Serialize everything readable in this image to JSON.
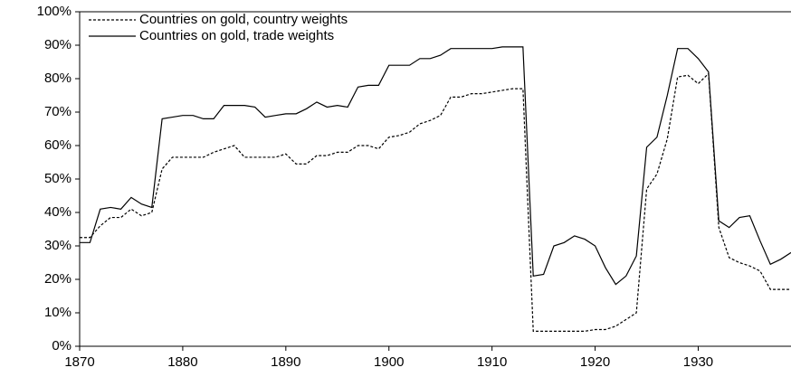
{
  "chart_data": {
    "type": "line",
    "x": [
      1870,
      1871,
      1872,
      1873,
      1874,
      1875,
      1876,
      1877,
      1878,
      1879,
      1880,
      1881,
      1882,
      1883,
      1884,
      1885,
      1886,
      1887,
      1888,
      1889,
      1890,
      1891,
      1892,
      1893,
      1894,
      1895,
      1896,
      1897,
      1898,
      1899,
      1900,
      1901,
      1902,
      1903,
      1904,
      1905,
      1906,
      1907,
      1908,
      1909,
      1910,
      1911,
      1912,
      1913,
      1914,
      1915,
      1916,
      1917,
      1918,
      1919,
      1920,
      1921,
      1922,
      1923,
      1924,
      1925,
      1926,
      1927,
      1928,
      1929,
      1930,
      1931,
      1932,
      1933,
      1934,
      1935,
      1936,
      1937,
      1938,
      1939
    ],
    "series": [
      {
        "name": "Countries on gold, country weights",
        "color": "#000000",
        "dashed": true,
        "values": [
          32.5,
          32.5,
          36,
          38.5,
          38.5,
          41,
          39,
          40,
          53,
          56.5,
          56.5,
          56.5,
          56.5,
          58,
          59,
          60,
          56.5,
          56.5,
          56.5,
          56.5,
          57.5,
          54.5,
          54.5,
          57,
          57,
          58,
          58,
          60,
          60,
          59,
          62.5,
          63,
          64,
          66.5,
          67.5,
          69,
          74.5,
          74.5,
          75.5,
          75.5,
          76,
          76.5,
          77,
          77,
          4.5,
          4.5,
          4.5,
          4.5,
          4.5,
          4.5,
          5,
          5,
          6,
          8,
          10,
          47,
          51.5,
          62,
          80.5,
          81,
          78.5,
          81.5,
          35.5,
          26.5,
          25,
          24,
          22.5,
          17,
          17,
          17
        ]
      },
      {
        "name": "Countries on gold, trade weights",
        "color": "#000000",
        "dashed": false,
        "values": [
          31,
          31,
          41,
          41.5,
          41,
          44.5,
          42.5,
          41.5,
          68,
          68.5,
          69,
          69,
          68,
          68,
          72,
          72,
          72,
          71.5,
          68.5,
          69,
          69.5,
          69.5,
          71,
          73,
          71.5,
          72,
          71.5,
          77.5,
          78,
          78,
          84,
          84,
          84,
          86,
          86,
          87,
          89,
          89,
          89,
          89,
          89,
          89.5,
          89.5,
          89.5,
          21,
          21.5,
          30,
          31,
          33,
          32,
          30,
          23.5,
          18.5,
          21,
          27,
          59.5,
          62.5,
          75,
          89,
          89,
          86,
          82,
          37.5,
          35.5,
          38.5,
          39,
          31.5,
          24.5,
          26,
          28
        ]
      }
    ],
    "xlim": [
      1870,
      1939
    ],
    "xticks": [
      1870,
      1880,
      1890,
      1900,
      1910,
      1920,
      1930
    ],
    "ylim": [
      0,
      100
    ],
    "yticks": [
      {
        "value": 0,
        "label": "0%"
      },
      {
        "value": 10,
        "label": "10%"
      },
      {
        "value": 20,
        "label": "20%"
      },
      {
        "value": 30,
        "label": "30%"
      },
      {
        "value": 40,
        "label": "40%"
      },
      {
        "value": 50,
        "label": "50%"
      },
      {
        "value": 60,
        "label": "60%"
      },
      {
        "value": 70,
        "label": "70%"
      },
      {
        "value": 80,
        "label": "80%"
      },
      {
        "value": 90,
        "label": "90%"
      },
      {
        "value": 100,
        "label": "100%"
      }
    ],
    "legend": "top-left"
  }
}
